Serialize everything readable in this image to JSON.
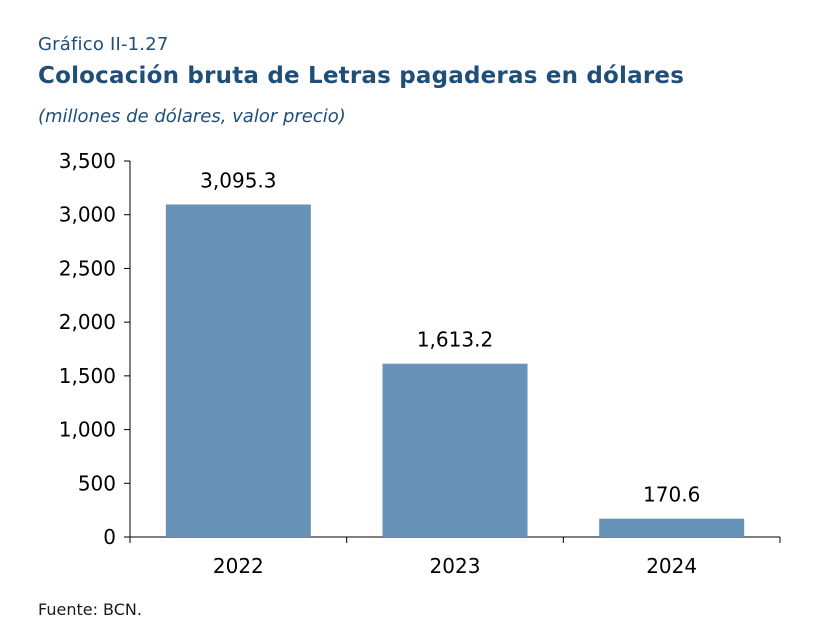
{
  "header": {
    "kicker": "Gráfico II-1.27",
    "title": "Colocación bruta de Letras pagaderas en dólares",
    "subtitle": "(millones de dólares, valor precio)"
  },
  "footer": {
    "source": "Fuente: BCN."
  },
  "chart_data": {
    "type": "bar",
    "categories": [
      "2022",
      "2023",
      "2024"
    ],
    "values": [
      3095.3,
      1613.2,
      170.6
    ],
    "data_labels": [
      "3,095.3",
      "1,613.2",
      "170.6"
    ],
    "ylim": [
      0,
      3500
    ],
    "yticks": [
      0,
      500,
      1000,
      1500,
      2000,
      2500,
      3000,
      3500
    ],
    "ytick_labels": [
      "0",
      "500",
      "1,000",
      "1,500",
      "2,000",
      "2,500",
      "3,000",
      "3,500"
    ],
    "bar_color": "#6892b7",
    "grid": false,
    "legend": false
  }
}
